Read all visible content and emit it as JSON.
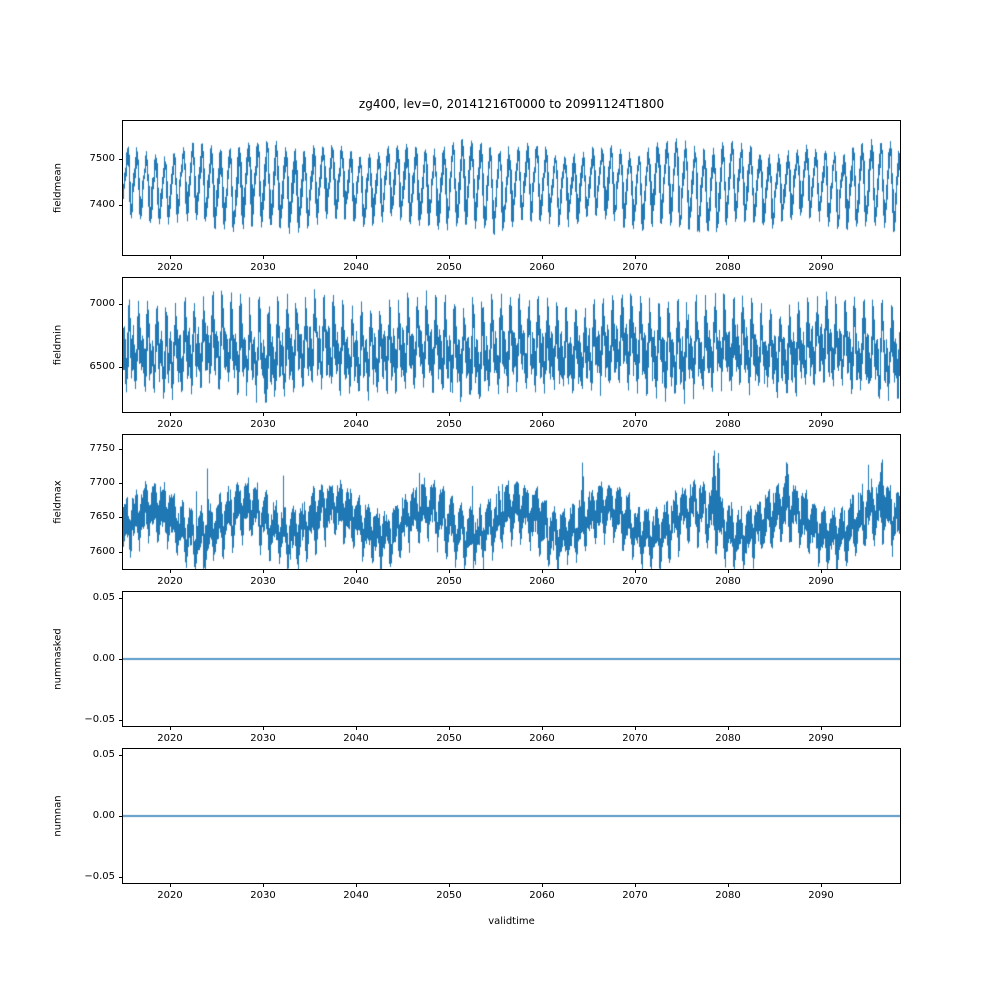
{
  "figure": {
    "title": "zg400, lev=0, 20141216T0000 to 20991124T1800",
    "xlabel": "validtime",
    "line_color": "#1f77b4",
    "background": "#ffffff"
  },
  "chart_data": {
    "type": "line",
    "title": "zg400, lev=0, 20141216T0000 to 20991124T1800",
    "xlabel": "validtime",
    "x_range": [
      2014.947,
      2098.5
    ],
    "x_ticks": [
      2020,
      2030,
      2040,
      2050,
      2060,
      2070,
      2080,
      2090
    ],
    "legend": "none",
    "grid": false,
    "subplots": [
      {
        "name": "fieldmean",
        "ylabel": "fieldmean",
        "ylim": [
          7292,
          7583
        ],
        "yticks": [
          {
            "value": 7500,
            "label": "7500"
          },
          {
            "value": 7400,
            "label": "7400"
          }
        ],
        "series": {
          "kind": "noisy-seasonal",
          "seed": 42,
          "mean": 7445,
          "annual_amplitude": 68,
          "annual_phase": 0.12,
          "semiannual_amplitude": 18,
          "semiannual_phase": 1.3,
          "slow_amplitude": 10,
          "slow_period": 7.3,
          "noise": 15,
          "observed_min": 7310,
          "observed_max": 7575
        }
      },
      {
        "name": "fieldmin",
        "ylabel": "fieldmin",
        "ylim": [
          6150,
          7200
        ],
        "yticks": [
          {
            "value": 7000,
            "label": "7000"
          },
          {
            "value": 6500,
            "label": "6500"
          }
        ],
        "series": {
          "kind": "noisy-seasonal",
          "seed": 77,
          "mean": 6640,
          "annual_amplitude": 150,
          "annual_phase": 0.4,
          "semiannual_amplitude": 130,
          "semiannual_phase": 0.6,
          "slow_amplitude": 40,
          "slow_period": 11,
          "noise": 170,
          "observed_min": 6190,
          "observed_max": 7150
        }
      },
      {
        "name": "fieldmax",
        "ylabel": "fieldmax",
        "ylim": [
          7575,
          7770
        ],
        "yticks": [
          {
            "value": 7750,
            "label": "7750"
          },
          {
            "value": 7700,
            "label": "7700"
          },
          {
            "value": 7650,
            "label": "7650"
          },
          {
            "value": 7600,
            "label": "7600"
          }
        ],
        "series": {
          "kind": "noisy-seasonal",
          "seed": 1234,
          "mean": 7642,
          "annual_amplitude": 18,
          "annual_phase": 0.0,
          "semiannual_amplitude": 8,
          "semiannual_phase": 2.1,
          "slow_amplitude": 20,
          "slow_period": 9.7,
          "noise": 30,
          "random_spike_prob": 0.012,
          "random_spike_amp": 60,
          "spikes": [
            {
              "t": 2078.5,
              "amp": 95
            },
            {
              "t": 2078.9,
              "amp": 80
            },
            {
              "t": 2096.6,
              "amp": 70
            },
            {
              "t": 2059.6,
              "amp": 45
            },
            {
              "t": 2064.3,
              "amp": 50
            },
            {
              "t": 2086.3,
              "amp": 40
            },
            {
              "t": 2035.5,
              "amp": 35
            }
          ],
          "observed_min": 7580,
          "observed_max": 7760
        }
      },
      {
        "name": "nummasked",
        "ylabel": "nummasked",
        "ylim": [
          -0.055,
          0.055
        ],
        "yticks": [
          {
            "value": 0.05,
            "label": "0.05"
          },
          {
            "value": 0.0,
            "label": "0.00"
          },
          {
            "value": -0.05,
            "label": "−0.05"
          }
        ],
        "series": {
          "kind": "constant",
          "value": 0.0
        }
      },
      {
        "name": "numnan",
        "ylabel": "numnan",
        "ylim": [
          -0.055,
          0.055
        ],
        "yticks": [
          {
            "value": 0.05,
            "label": "0.05"
          },
          {
            "value": 0.0,
            "label": "0.00"
          },
          {
            "value": -0.05,
            "label": "−0.05"
          }
        ],
        "series": {
          "kind": "constant",
          "value": 0.0
        }
      }
    ]
  }
}
